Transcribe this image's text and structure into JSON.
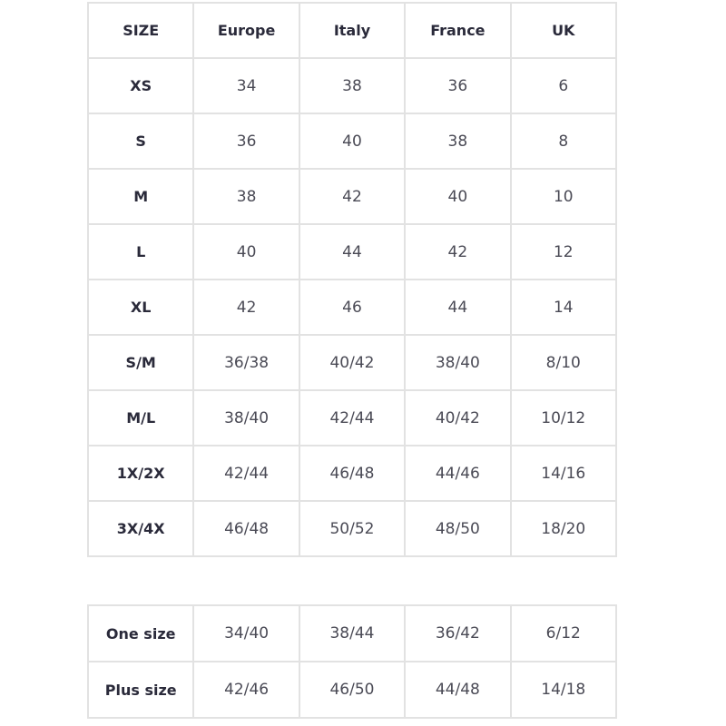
{
  "headers": [
    "SIZE",
    "Europe",
    "Italy",
    "France",
    "UK"
  ],
  "rows": [
    [
      "XS",
      "34",
      "38",
      "36",
      "6"
    ],
    [
      "S",
      "36",
      "40",
      "38",
      "8"
    ],
    [
      "M",
      "38",
      "42",
      "40",
      "10"
    ],
    [
      "L",
      "40",
      "44",
      "42",
      "12"
    ],
    [
      "XL",
      "42",
      "46",
      "44",
      "14"
    ],
    [
      "S/M",
      "36/38",
      "40/42",
      "38/40",
      "8/10"
    ],
    [
      "M/L",
      "38/40",
      "42/44",
      "40/42",
      "10/12"
    ],
    [
      "1X/2X",
      "42/44",
      "46/48",
      "44/46",
      "14/16"
    ],
    [
      "3X/4X",
      "46/48",
      "50/52",
      "48/50",
      "18/20"
    ]
  ],
  "extra_rows": [
    [
      "One size",
      "34/40",
      "38/44",
      "36/42",
      "6/12"
    ],
    [
      "Plus size",
      "42/46",
      "46/50",
      "44/48",
      "14/18"
    ]
  ]
}
